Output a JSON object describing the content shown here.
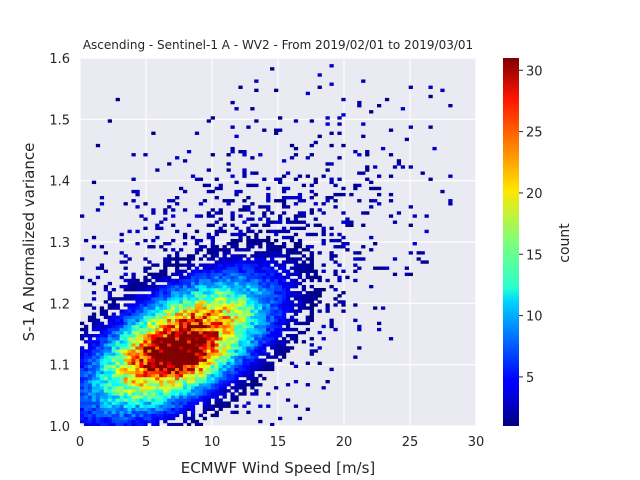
{
  "chart_data": {
    "type": "heatmap",
    "title": "Ascending - Sentinel-1 A - WV2 - From 2019/02/01 to 2019/03/01",
    "xlabel": "ECMWF Wind Speed [m/s]",
    "ylabel": "S-1 A Normalized variance",
    "xlim": [
      0,
      30
    ],
    "ylim": [
      1.0,
      1.6
    ],
    "xticks": [
      "0",
      "5",
      "10",
      "15",
      "20",
      "25",
      "30"
    ],
    "yticks": [
      "1.0",
      "1.1",
      "1.2",
      "1.3",
      "1.4",
      "1.5",
      "1.6"
    ],
    "grid": true,
    "colorbar": {
      "label": "count",
      "range": [
        1,
        31
      ],
      "ticks": [
        "5",
        "10",
        "15",
        "20",
        "25",
        "30"
      ],
      "colormap": "jet"
    },
    "density_peak": {
      "x": 7.5,
      "y": 1.11,
      "count": 31
    },
    "bins": {
      "x_width": 0.3,
      "y_width": 0.005
    },
    "background_color": "#eaeaf2"
  }
}
